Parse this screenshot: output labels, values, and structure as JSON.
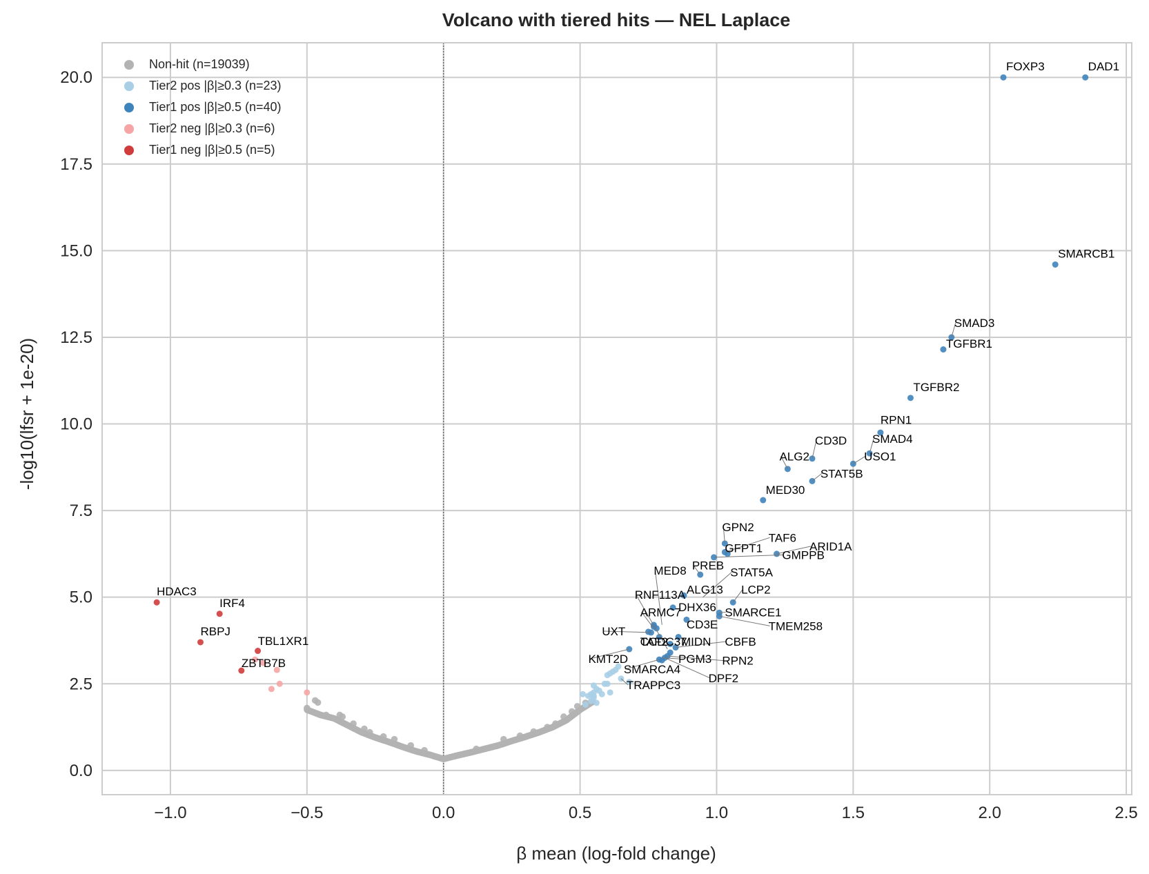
{
  "chart_data": {
    "type": "scatter",
    "title": "Volcano with tiered hits — NEL Laplace",
    "xlabel": "β mean (log-fold change)",
    "ylabel": "-log10(lfsr + 1e-20)",
    "xlim": [
      -1.25,
      2.52
    ],
    "ylim": [
      -0.7,
      21.0
    ],
    "xticks": [
      -1.0,
      -0.5,
      0.0,
      0.5,
      1.0,
      1.5,
      2.0,
      2.5
    ],
    "xtick_labels": [
      "−1.0",
      "−0.5",
      "0.0",
      "0.5",
      "1.0",
      "1.5",
      "2.0",
      "2.5"
    ],
    "yticks": [
      0.0,
      2.5,
      5.0,
      7.5,
      10.0,
      12.5,
      15.0,
      17.5,
      20.0
    ],
    "ytick_labels": [
      "0.0",
      "2.5",
      "5.0",
      "7.5",
      "10.0",
      "12.5",
      "15.0",
      "17.5",
      "20.0"
    ],
    "grid": true,
    "legend_position": "top-left",
    "reference_line_x": 0.0,
    "colors": {
      "nonhit": "#b3b3b3",
      "tier2_pos": "#a8cfe6",
      "tier1_pos": "#3f83bb",
      "tier2_neg": "#f5a5a5",
      "tier1_neg": "#d03c3c"
    },
    "series": [
      {
        "name": "Non-hit (n=19039)",
        "key": "nonhit",
        "curve_points": [
          [
            -0.5,
            1.75
          ],
          [
            -0.45,
            1.6
          ],
          [
            -0.4,
            1.5
          ],
          [
            -0.35,
            1.3
          ],
          [
            -0.3,
            1.1
          ],
          [
            -0.25,
            0.95
          ],
          [
            -0.2,
            0.82
          ],
          [
            -0.15,
            0.68
          ],
          [
            -0.1,
            0.55
          ],
          [
            -0.05,
            0.45
          ],
          [
            0.0,
            0.33
          ],
          [
            0.05,
            0.43
          ],
          [
            0.1,
            0.52
          ],
          [
            0.15,
            0.62
          ],
          [
            0.2,
            0.72
          ],
          [
            0.25,
            0.85
          ],
          [
            0.3,
            0.97
          ],
          [
            0.35,
            1.1
          ],
          [
            0.4,
            1.25
          ],
          [
            0.45,
            1.45
          ],
          [
            0.5,
            1.75
          ],
          [
            0.55,
            2.0
          ]
        ],
        "points": [
          [
            -0.47,
            2.02
          ],
          [
            -0.46,
            1.96
          ],
          [
            -0.5,
            1.8
          ],
          [
            -0.43,
            1.6
          ],
          [
            -0.38,
            1.6
          ],
          [
            -0.37,
            1.55
          ],
          [
            -0.33,
            1.35
          ],
          [
            -0.29,
            1.2
          ],
          [
            -0.27,
            1.1
          ],
          [
            -0.22,
            0.98
          ],
          [
            -0.18,
            0.9
          ],
          [
            -0.12,
            0.72
          ],
          [
            -0.07,
            0.58
          ],
          [
            0.12,
            0.62
          ],
          [
            0.22,
            0.9
          ],
          [
            0.28,
            1.0
          ],
          [
            0.33,
            1.12
          ],
          [
            0.38,
            1.25
          ],
          [
            0.41,
            1.35
          ],
          [
            0.44,
            1.55
          ],
          [
            0.47,
            1.7
          ],
          [
            0.49,
            1.85
          ],
          [
            0.52,
            1.95
          ]
        ]
      },
      {
        "name": "Tier2 pos |β|≥0.3 (n=23)",
        "key": "tier2_pos",
        "points": [
          [
            0.53,
            2.15
          ],
          [
            0.55,
            2.25
          ],
          [
            0.56,
            2.35
          ],
          [
            0.57,
            2.3
          ],
          [
            0.58,
            2.2
          ],
          [
            0.55,
            2.45
          ],
          [
            0.59,
            2.5
          ],
          [
            0.6,
            2.75
          ],
          [
            0.61,
            2.8
          ],
          [
            0.62,
            2.85
          ],
          [
            0.55,
            2.1
          ],
          [
            0.54,
            2.0
          ],
          [
            0.52,
            1.9
          ],
          [
            0.6,
            2.5
          ],
          [
            0.63,
            2.9
          ],
          [
            0.65,
            2.65
          ],
          [
            0.68,
            2.55
          ],
          [
            0.55,
            2.15
          ],
          [
            0.54,
            2.2
          ],
          [
            0.51,
            2.2
          ],
          [
            0.56,
            1.95
          ],
          [
            0.61,
            2.25
          ],
          [
            0.64,
            3.0
          ]
        ]
      },
      {
        "name": "Tier1 pos |β|≥0.5 (n=40)",
        "key": "tier1_pos",
        "points": [
          [
            2.05,
            20.0
          ],
          [
            2.35,
            20.0
          ],
          [
            2.24,
            14.6
          ],
          [
            1.86,
            12.5
          ],
          [
            1.83,
            12.15
          ],
          [
            1.71,
            10.75
          ],
          [
            1.6,
            9.75
          ],
          [
            1.56,
            9.15
          ],
          [
            1.35,
            9.0
          ],
          [
            1.5,
            8.85
          ],
          [
            1.26,
            8.7
          ],
          [
            1.35,
            8.35
          ],
          [
            1.17,
            7.8
          ],
          [
            1.03,
            6.55
          ],
          [
            1.03,
            6.3
          ],
          [
            1.22,
            6.25
          ],
          [
            1.04,
            6.25
          ],
          [
            0.99,
            6.15
          ],
          [
            0.94,
            5.65
          ],
          [
            1.06,
            4.85
          ],
          [
            0.88,
            5.05
          ],
          [
            0.84,
            4.7
          ],
          [
            1.01,
            4.55
          ],
          [
            1.01,
            4.45
          ],
          [
            0.89,
            4.35
          ],
          [
            0.77,
            4.2
          ],
          [
            0.78,
            4.1
          ],
          [
            0.76,
            3.98
          ],
          [
            0.79,
            3.85
          ],
          [
            0.83,
            3.65
          ],
          [
            0.85,
            3.55
          ],
          [
            0.68,
            3.5
          ],
          [
            0.83,
            3.4
          ],
          [
            0.81,
            3.25
          ],
          [
            0.79,
            3.2
          ],
          [
            0.8,
            3.18
          ],
          [
            0.82,
            3.3
          ],
          [
            0.77,
            4.15
          ],
          [
            0.75,
            4.0
          ],
          [
            0.86,
            3.85
          ]
        ]
      },
      {
        "name": "Tier2 neg |β|≥0.3 (n=6)",
        "key": "tier2_neg",
        "points": [
          [
            -0.5,
            2.25
          ],
          [
            -0.6,
            2.5
          ],
          [
            -0.63,
            2.35
          ],
          [
            -0.61,
            2.9
          ],
          [
            -0.66,
            3.1
          ],
          [
            -0.69,
            3.2
          ]
        ]
      },
      {
        "name": "Tier1 neg |β|≥0.5 (n=5)",
        "key": "tier1_neg",
        "points": [
          [
            -1.05,
            4.85
          ],
          [
            -0.82,
            4.52
          ],
          [
            -0.89,
            3.7
          ],
          [
            -0.68,
            3.45
          ],
          [
            -0.74,
            2.88
          ]
        ]
      }
    ],
    "annotations": [
      {
        "text": "FOXP3",
        "x": 2.05,
        "y": 20.0,
        "lx": 2.06,
        "ly": 20.2,
        "leader": false
      },
      {
        "text": "DAD1",
        "x": 2.35,
        "y": 20.0,
        "lx": 2.36,
        "ly": 20.2,
        "leader": false
      },
      {
        "text": "SMARCB1",
        "x": 2.24,
        "y": 14.6,
        "lx": 2.25,
        "ly": 14.8,
        "leader": false
      },
      {
        "text": "SMAD3",
        "x": 1.86,
        "y": 12.5,
        "lx": 1.87,
        "ly": 12.8,
        "leader": true
      },
      {
        "text": "TGFBR1",
        "x": 1.83,
        "y": 12.15,
        "lx": 1.84,
        "ly": 12.2,
        "leader": false
      },
      {
        "text": "TGFBR2",
        "x": 1.71,
        "y": 10.75,
        "lx": 1.72,
        "ly": 10.95,
        "leader": false
      },
      {
        "text": "RPN1",
        "x": 1.6,
        "y": 9.75,
        "lx": 1.6,
        "ly": 10.0,
        "leader": false
      },
      {
        "text": "SMAD4",
        "x": 1.56,
        "y": 9.15,
        "lx": 1.57,
        "ly": 9.45,
        "leader": true
      },
      {
        "text": "CD3D",
        "x": 1.35,
        "y": 9.0,
        "lx": 1.36,
        "ly": 9.4,
        "leader": true
      },
      {
        "text": "USO1",
        "x": 1.5,
        "y": 8.85,
        "lx": 1.54,
        "ly": 8.95,
        "leader": true
      },
      {
        "text": "ALG2",
        "x": 1.26,
        "y": 8.7,
        "lx": 1.23,
        "ly": 8.95,
        "leader": true
      },
      {
        "text": "STAT5B",
        "x": 1.35,
        "y": 8.35,
        "lx": 1.38,
        "ly": 8.45,
        "leader": true
      },
      {
        "text": "MED30",
        "x": 1.17,
        "y": 7.8,
        "lx": 1.18,
        "ly": 7.98,
        "leader": false
      },
      {
        "text": "GPN2",
        "x": 1.03,
        "y": 6.55,
        "lx": 1.02,
        "ly": 6.9,
        "leader": true
      },
      {
        "text": "TAF6",
        "x": 1.03,
        "y": 6.3,
        "lx": 1.19,
        "ly": 6.6,
        "leader": true
      },
      {
        "text": "ARID1A",
        "x": 1.22,
        "y": 6.25,
        "lx": 1.34,
        "ly": 6.35,
        "leader": true
      },
      {
        "text": "GFPT1",
        "x": 1.04,
        "y": 6.25,
        "lx": 1.03,
        "ly": 6.3,
        "leader": false
      },
      {
        "text": "GMPPB",
        "x": 0.99,
        "y": 6.15,
        "lx": 1.24,
        "ly": 6.1,
        "leader": true
      },
      {
        "text": "PREB",
        "x": 0.94,
        "y": 5.65,
        "lx": 0.91,
        "ly": 5.8,
        "leader": true
      },
      {
        "text": "STAT5A",
        "x": 0.95,
        "y": 5.0,
        "lx": 1.05,
        "ly": 5.6,
        "leader": true
      },
      {
        "text": "MED8",
        "x": 0.8,
        "y": 4.2,
        "lx": 0.77,
        "ly": 5.65,
        "leader": true
      },
      {
        "text": "ALG13",
        "x": 0.88,
        "y": 5.05,
        "lx": 0.89,
        "ly": 5.1,
        "leader": false
      },
      {
        "text": "LCP2",
        "x": 1.06,
        "y": 4.85,
        "lx": 1.09,
        "ly": 5.1,
        "leader": true
      },
      {
        "text": "RNF113A",
        "x": 0.82,
        "y": 3.5,
        "lx": 0.7,
        "ly": 4.95,
        "leader": true
      },
      {
        "text": "DHX36",
        "x": 0.84,
        "y": 4.7,
        "lx": 0.86,
        "ly": 4.6,
        "leader": false
      },
      {
        "text": "SMARCE1",
        "x": 1.01,
        "y": 4.55,
        "lx": 1.03,
        "ly": 4.45,
        "leader": true
      },
      {
        "text": "ARMC7",
        "x": 0.77,
        "y": 4.1,
        "lx": 0.72,
        "ly": 4.45,
        "leader": true
      },
      {
        "text": "CD3E",
        "x": 0.89,
        "y": 4.35,
        "lx": 0.89,
        "ly": 4.1,
        "leader": false
      },
      {
        "text": "TMEM258",
        "x": 1.01,
        "y": 4.45,
        "lx": 1.19,
        "ly": 4.05,
        "leader": true
      },
      {
        "text": "UXT",
        "x": 0.76,
        "y": 3.98,
        "lx": 0.58,
        "ly": 3.9,
        "leader": true
      },
      {
        "text": "CCDC37",
        "x": 0.78,
        "y": 3.85,
        "lx": 0.72,
        "ly": 3.6,
        "leader": false
      },
      {
        "text": "TAF2",
        "x": 0.79,
        "y": 3.8,
        "lx": 0.72,
        "ly": 3.6,
        "leader": false
      },
      {
        "text": "MIDN",
        "x": 0.86,
        "y": 3.85,
        "lx": 0.87,
        "ly": 3.6,
        "leader": false
      },
      {
        "text": "CBFB",
        "x": 0.85,
        "y": 3.55,
        "lx": 1.03,
        "ly": 3.6,
        "leader": true
      },
      {
        "text": "KMT2D",
        "x": 0.68,
        "y": 3.5,
        "lx": 0.53,
        "ly": 3.1,
        "leader": true
      },
      {
        "text": "PGM3",
        "x": 0.8,
        "y": 3.25,
        "lx": 0.86,
        "ly": 3.1,
        "leader": true
      },
      {
        "text": "RPN2",
        "x": 0.82,
        "y": 3.3,
        "lx": 1.02,
        "ly": 3.05,
        "leader": true
      },
      {
        "text": "SMARCA4",
        "x": 0.79,
        "y": 3.2,
        "lx": 0.66,
        "ly": 2.8,
        "leader": true
      },
      {
        "text": "DPF2",
        "x": 0.81,
        "y": 3.25,
        "lx": 0.97,
        "ly": 2.55,
        "leader": true
      },
      {
        "text": "TRAPPC3",
        "x": 0.65,
        "y": 2.65,
        "lx": 0.67,
        "ly": 2.35,
        "leader": true
      },
      {
        "text": "HDAC3",
        "x": -1.05,
        "y": 4.85,
        "lx": -1.05,
        "ly": 5.05,
        "leader": false
      },
      {
        "text": "IRF4",
        "x": -0.82,
        "y": 4.52,
        "lx": -0.82,
        "ly": 4.72,
        "leader": false
      },
      {
        "text": "RBPJ",
        "x": -0.89,
        "y": 3.7,
        "lx": -0.89,
        "ly": 3.9,
        "leader": false
      },
      {
        "text": "TBL1XR1",
        "x": -0.68,
        "y": 3.45,
        "lx": -0.68,
        "ly": 3.62,
        "leader": false
      },
      {
        "text": "ZBTB7B",
        "x": -0.74,
        "y": 2.88,
        "lx": -0.74,
        "ly": 2.98,
        "leader": false
      }
    ]
  }
}
